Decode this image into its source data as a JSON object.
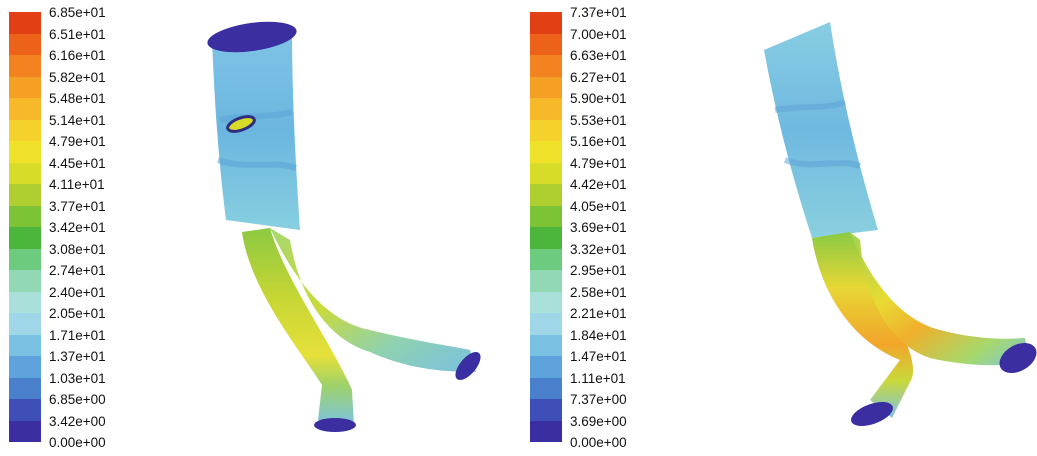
{
  "colormap": [
    "#3a2ea0",
    "#3f4fb8",
    "#4a7fcc",
    "#5ea3dc",
    "#79c0e3",
    "#9fd6e8",
    "#a9e0d9",
    "#92d8b4",
    "#6ccb7e",
    "#4cb53c",
    "#7cc336",
    "#aecf2f",
    "#d6dc28",
    "#f0e22a",
    "#f4d22b",
    "#f6b92a",
    "#f69f25",
    "#f28320",
    "#ec6219",
    "#e33f14"
  ],
  "panels": [
    {
      "legend_labels": [
        "6.85e+01",
        "6.51e+01",
        "6.16e+01",
        "5.82e+01",
        "5.48e+01",
        "5.14e+01",
        "4.79e+01",
        "4.45e+01",
        "4.11e+01",
        "3.77e+01",
        "3.42e+01",
        "3.08e+01",
        "2.74e+01",
        "2.40e+01",
        "2.05e+01",
        "1.71e+01",
        "1.37e+01",
        "1.03e+01",
        "6.85e+00",
        "3.42e+00",
        "0.00e+00"
      ]
    },
    {
      "legend_labels": [
        "7.37e+01",
        "7.00e+01",
        "6.63e+01",
        "6.27e+01",
        "5.90e+01",
        "5.53e+01",
        "5.16e+01",
        "4.79e+01",
        "4.42e+01",
        "4.05e+01",
        "3.69e+01",
        "3.32e+01",
        "2.95e+01",
        "2.58e+01",
        "2.21e+01",
        "1.84e+01",
        "1.47e+01",
        "1.11e+01",
        "7.37e+00",
        "3.69e+00",
        "0.00e+00"
      ]
    }
  ]
}
